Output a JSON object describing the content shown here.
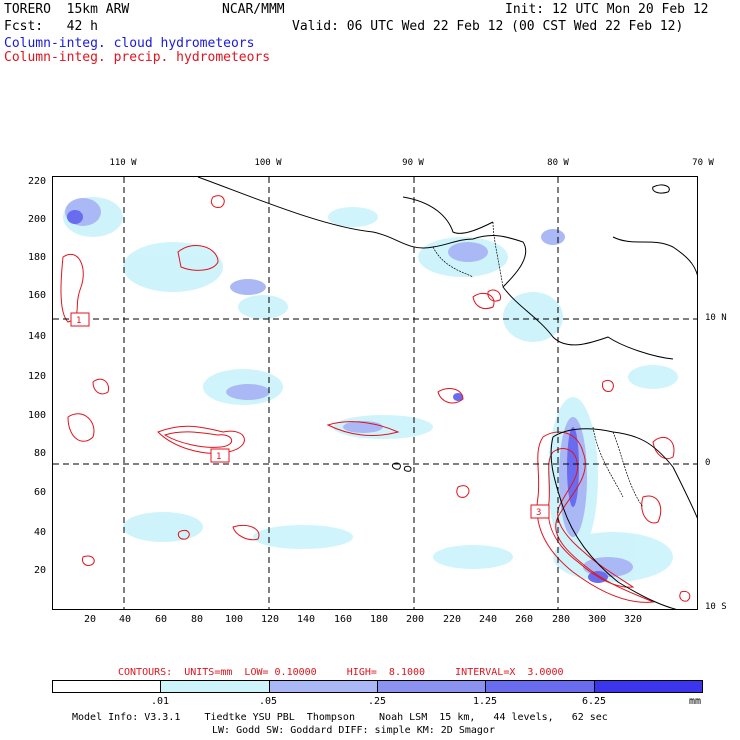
{
  "header": {
    "model": "TORERO  15km ARW",
    "org": "NCAR/MMM",
    "init": "Init: 12 UTC Mon 20 Feb 12",
    "fcst": "Fcst:   42 h",
    "valid": "Valid: 06 UTC Wed 22 Feb 12 (00 CST Wed 22 Feb 12)",
    "field_cloud": "Column-integ. cloud hydrometeors",
    "field_precip": "Column-integ. precip. hydrometeors"
  },
  "axes": {
    "y_ticks": [
      "220",
      "200",
      "180",
      "160",
      "140",
      "120",
      "100",
      "80",
      "60",
      "40",
      "20"
    ],
    "x_ticks": [
      "20",
      "40",
      "60",
      "80",
      "100",
      "120",
      "140",
      "160",
      "180",
      "200",
      "220",
      "240",
      "260",
      "280",
      "300",
      "320"
    ],
    "lon_labels": [
      "110 W",
      "100 W",
      "90 W",
      "80 W",
      "70 W"
    ],
    "lat_labels": [
      "10 N",
      "0",
      "10 S"
    ]
  },
  "map_labels": {
    "box_a": "1",
    "box_b": "1",
    "box_c": "3"
  },
  "contour_info": {
    "label": "CONTOURS:  UNITS=mm  LOW= 0.10000     HIGH=  8.1000     INTERVAL=X  3.0000"
  },
  "legend": {
    "colors": [
      "#ffffff",
      "#cdf3fb",
      "#aab9f5",
      "#8b92f0",
      "#6a6cf0",
      "#3b36ee"
    ],
    "ticks": [
      ".01",
      ".05",
      ".25",
      "1.25",
      "6.25"
    ],
    "unit": "mm"
  },
  "footer": {
    "line1": "Model Info: V3.3.1    Tiedtke YSU PBL  Thompson    Noah LSM  15 km,   44 levels,   62 sec",
    "line2": "LW: Godd SW: Goddard DIFF: simple KM: 2D Smagor"
  }
}
